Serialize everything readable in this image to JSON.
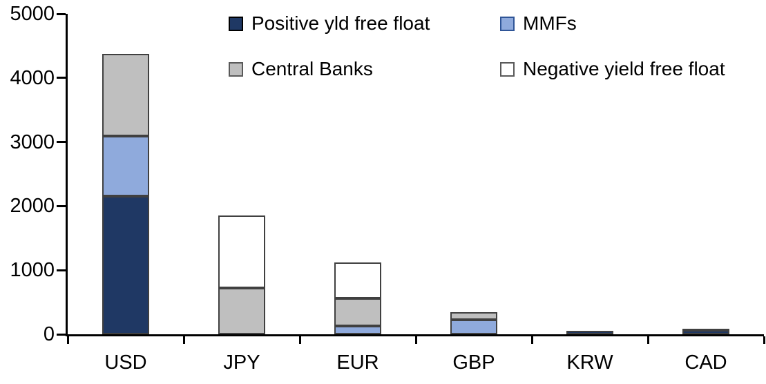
{
  "chart_data": {
    "type": "bar",
    "stacked": true,
    "title": "",
    "xlabel": "",
    "ylabel": "",
    "categories": [
      "USD",
      "JPY",
      "EUR",
      "GBP",
      "KRW",
      "CAD"
    ],
    "series": [
      {
        "name": "Positive yld free float",
        "color": "#1F3864",
        "border_color": "#000000",
        "values": [
          2150,
          0,
          0,
          0,
          50,
          60
        ]
      },
      {
        "name": "MMFs",
        "color": "#8FAADC",
        "border_color": "#2F5597",
        "values": [
          940,
          0,
          130,
          230,
          0,
          0
        ]
      },
      {
        "name": "Central Banks",
        "color": "#BFBFBF",
        "border_color": "#595959",
        "values": [
          1280,
          720,
          425,
          120,
          0,
          30
        ]
      },
      {
        "name": "Negative yield free float",
        "color": "#FFFFFF",
        "border_color": "#595959",
        "values": [
          0,
          1130,
          570,
          0,
          0,
          0
        ]
      }
    ],
    "totals": [
      4370,
      1850,
      1125,
      350,
      50,
      90
    ],
    "ylim": [
      0,
      5000
    ],
    "yticks": [
      0,
      1000,
      2000,
      3000,
      4000,
      5000
    ],
    "grid": false,
    "legend_position": "top",
    "axis_color": "#000000",
    "background_color": "#FFFFFF"
  }
}
